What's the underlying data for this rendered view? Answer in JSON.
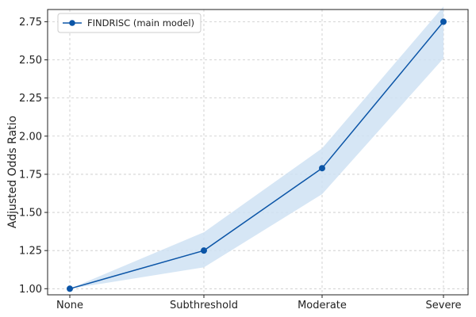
{
  "chart_data": {
    "type": "line",
    "categories": [
      "None",
      "Subthreshold",
      "Moderate",
      "Severe"
    ],
    "series": [
      {
        "name": "FINDRISC (main model)",
        "values": [
          1.0,
          1.25,
          1.79,
          2.75
        ],
        "lower": [
          1.0,
          1.14,
          1.62,
          2.51
        ],
        "upper": [
          1.0,
          1.37,
          1.92,
          2.85
        ]
      }
    ],
    "xlabel": "",
    "ylabel": "Adjusted Odds Ratio",
    "ylim": [
      0.96,
      2.83
    ],
    "yticks": [
      "1.00",
      "1.25",
      "1.50",
      "1.75",
      "2.00",
      "2.25",
      "2.50",
      "2.75"
    ],
    "grid": true,
    "legend_position": "top-left",
    "colors": {
      "line": "#0b55a7",
      "band": "#cfe2f3",
      "grid": "#c8c8c8"
    }
  }
}
